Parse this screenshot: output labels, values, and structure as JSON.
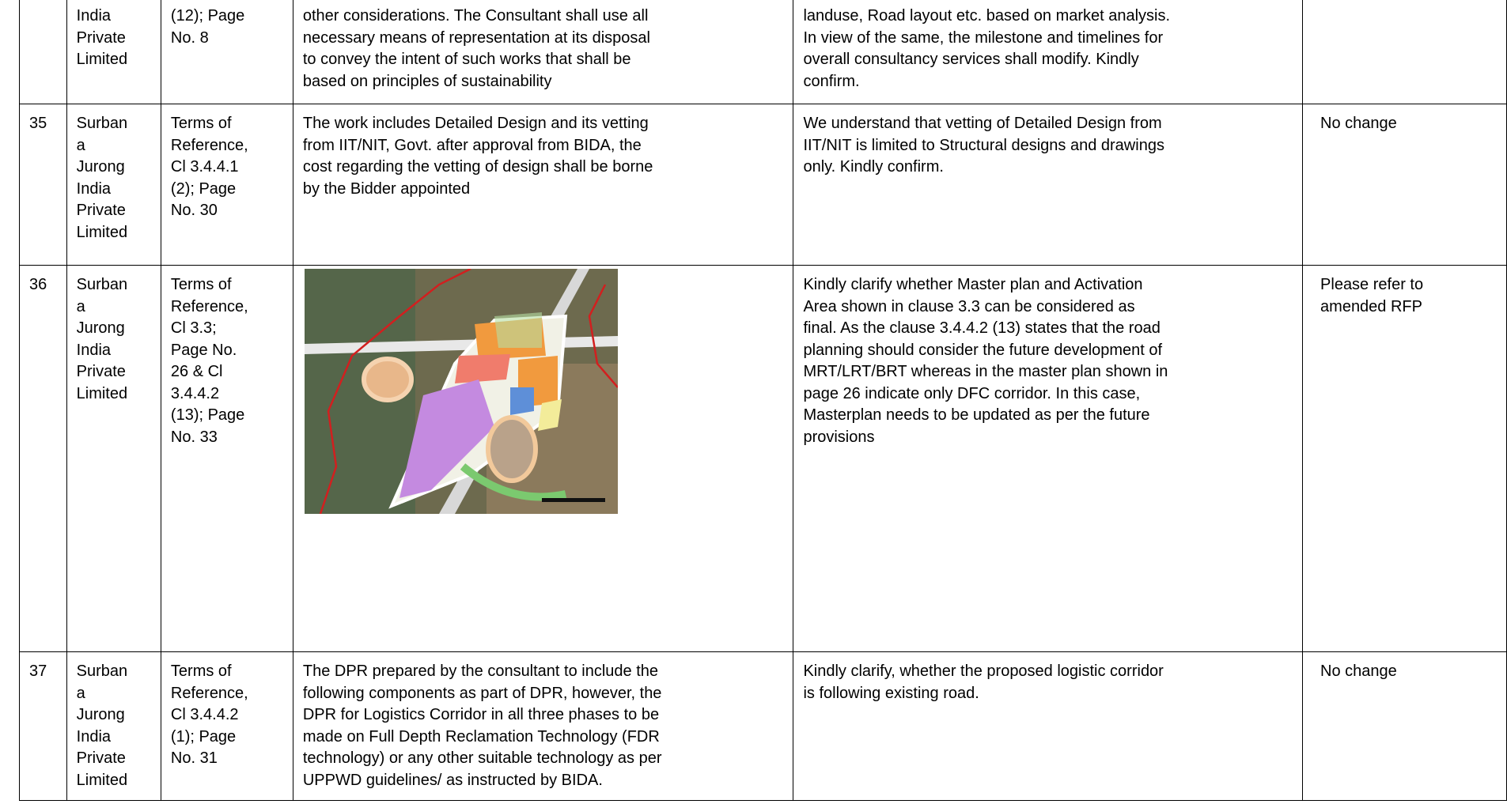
{
  "table": {
    "rows": [
      {
        "cells": [
          [],
          [
            "India",
            "Private",
            "Limited"
          ],
          [
            "(12); Page",
            "No. 8"
          ],
          [
            "other considerations. The Consultant shall use all",
            "necessary means of representation at its disposal",
            "to convey the intent of such works that shall be",
            "based on principles of sustainability"
          ],
          [
            "landuse, Road layout etc. based on market analysis.",
            "In view of the same, the milestone and timelines for",
            "overall consultancy services shall modify. Kindly",
            "confirm."
          ],
          []
        ]
      },
      {
        "cells": [
          [
            "35"
          ],
          [
            "Surban",
            "a",
            "Jurong",
            "India",
            "Private",
            "Limited"
          ],
          [
            "Terms of",
            "Reference,",
            "Cl 3.4.4.1",
            "(2); Page",
            "No. 30"
          ],
          [
            "The work includes Detailed Design and its vetting",
            "from IIT/NIT, Govt. after approval from BIDA, the",
            "cost regarding the vetting of design shall be borne",
            "by the Bidder appointed"
          ],
          [
            "We understand that vetting of Detailed Design from",
            "IIT/NIT is limited to Structural designs and drawings",
            "only. Kindly confirm."
          ],
          [
            "No change"
          ]
        ]
      },
      {
        "cells": [
          [
            "36"
          ],
          [
            "Surban",
            "a",
            "Jurong",
            "India",
            "Private",
            "Limited"
          ],
          [
            "Terms of",
            "Reference,",
            "Cl 3.3;",
            "Page No.",
            "26 & Cl",
            "3.4.4.2",
            "(13); Page",
            "No. 33"
          ],
          [],
          [
            "Kindly clarify whether Master plan and Activation",
            "Area shown in clause 3.3 can be considered as",
            "final. As the clause 3.4.4.2 (13) states that the road",
            "planning should consider the future development of",
            "MRT/LRT/BRT whereas in the master plan shown in",
            "page 26 indicate only DFC corridor. In this case,",
            "Masterplan needs to be updated as per the future",
            "provisions"
          ],
          [
            "Please refer to",
            "amended RFP"
          ]
        ]
      },
      {
        "cells": [
          [
            "37"
          ],
          [
            "Surban",
            "a",
            "Jurong",
            "India",
            "Private",
            "Limited"
          ],
          [
            "Terms of",
            "Reference,",
            "Cl 3.4.4.2",
            "(1); Page",
            "No. 31"
          ],
          [
            "The DPR prepared by the consultant to include the",
            "following components as part of DPR, however, the",
            "DPR for Logistics Corridor in all three phases to be",
            "made on Full Depth Reclamation Technology (FDR",
            "technology) or any other suitable technology as per",
            "UPPWD guidelines/ as instructed by BIDA."
          ],
          [
            "Kindly clarify, whether the proposed logistic corridor",
            "is following existing road."
          ],
          [
            "No change"
          ]
        ]
      }
    ]
  }
}
